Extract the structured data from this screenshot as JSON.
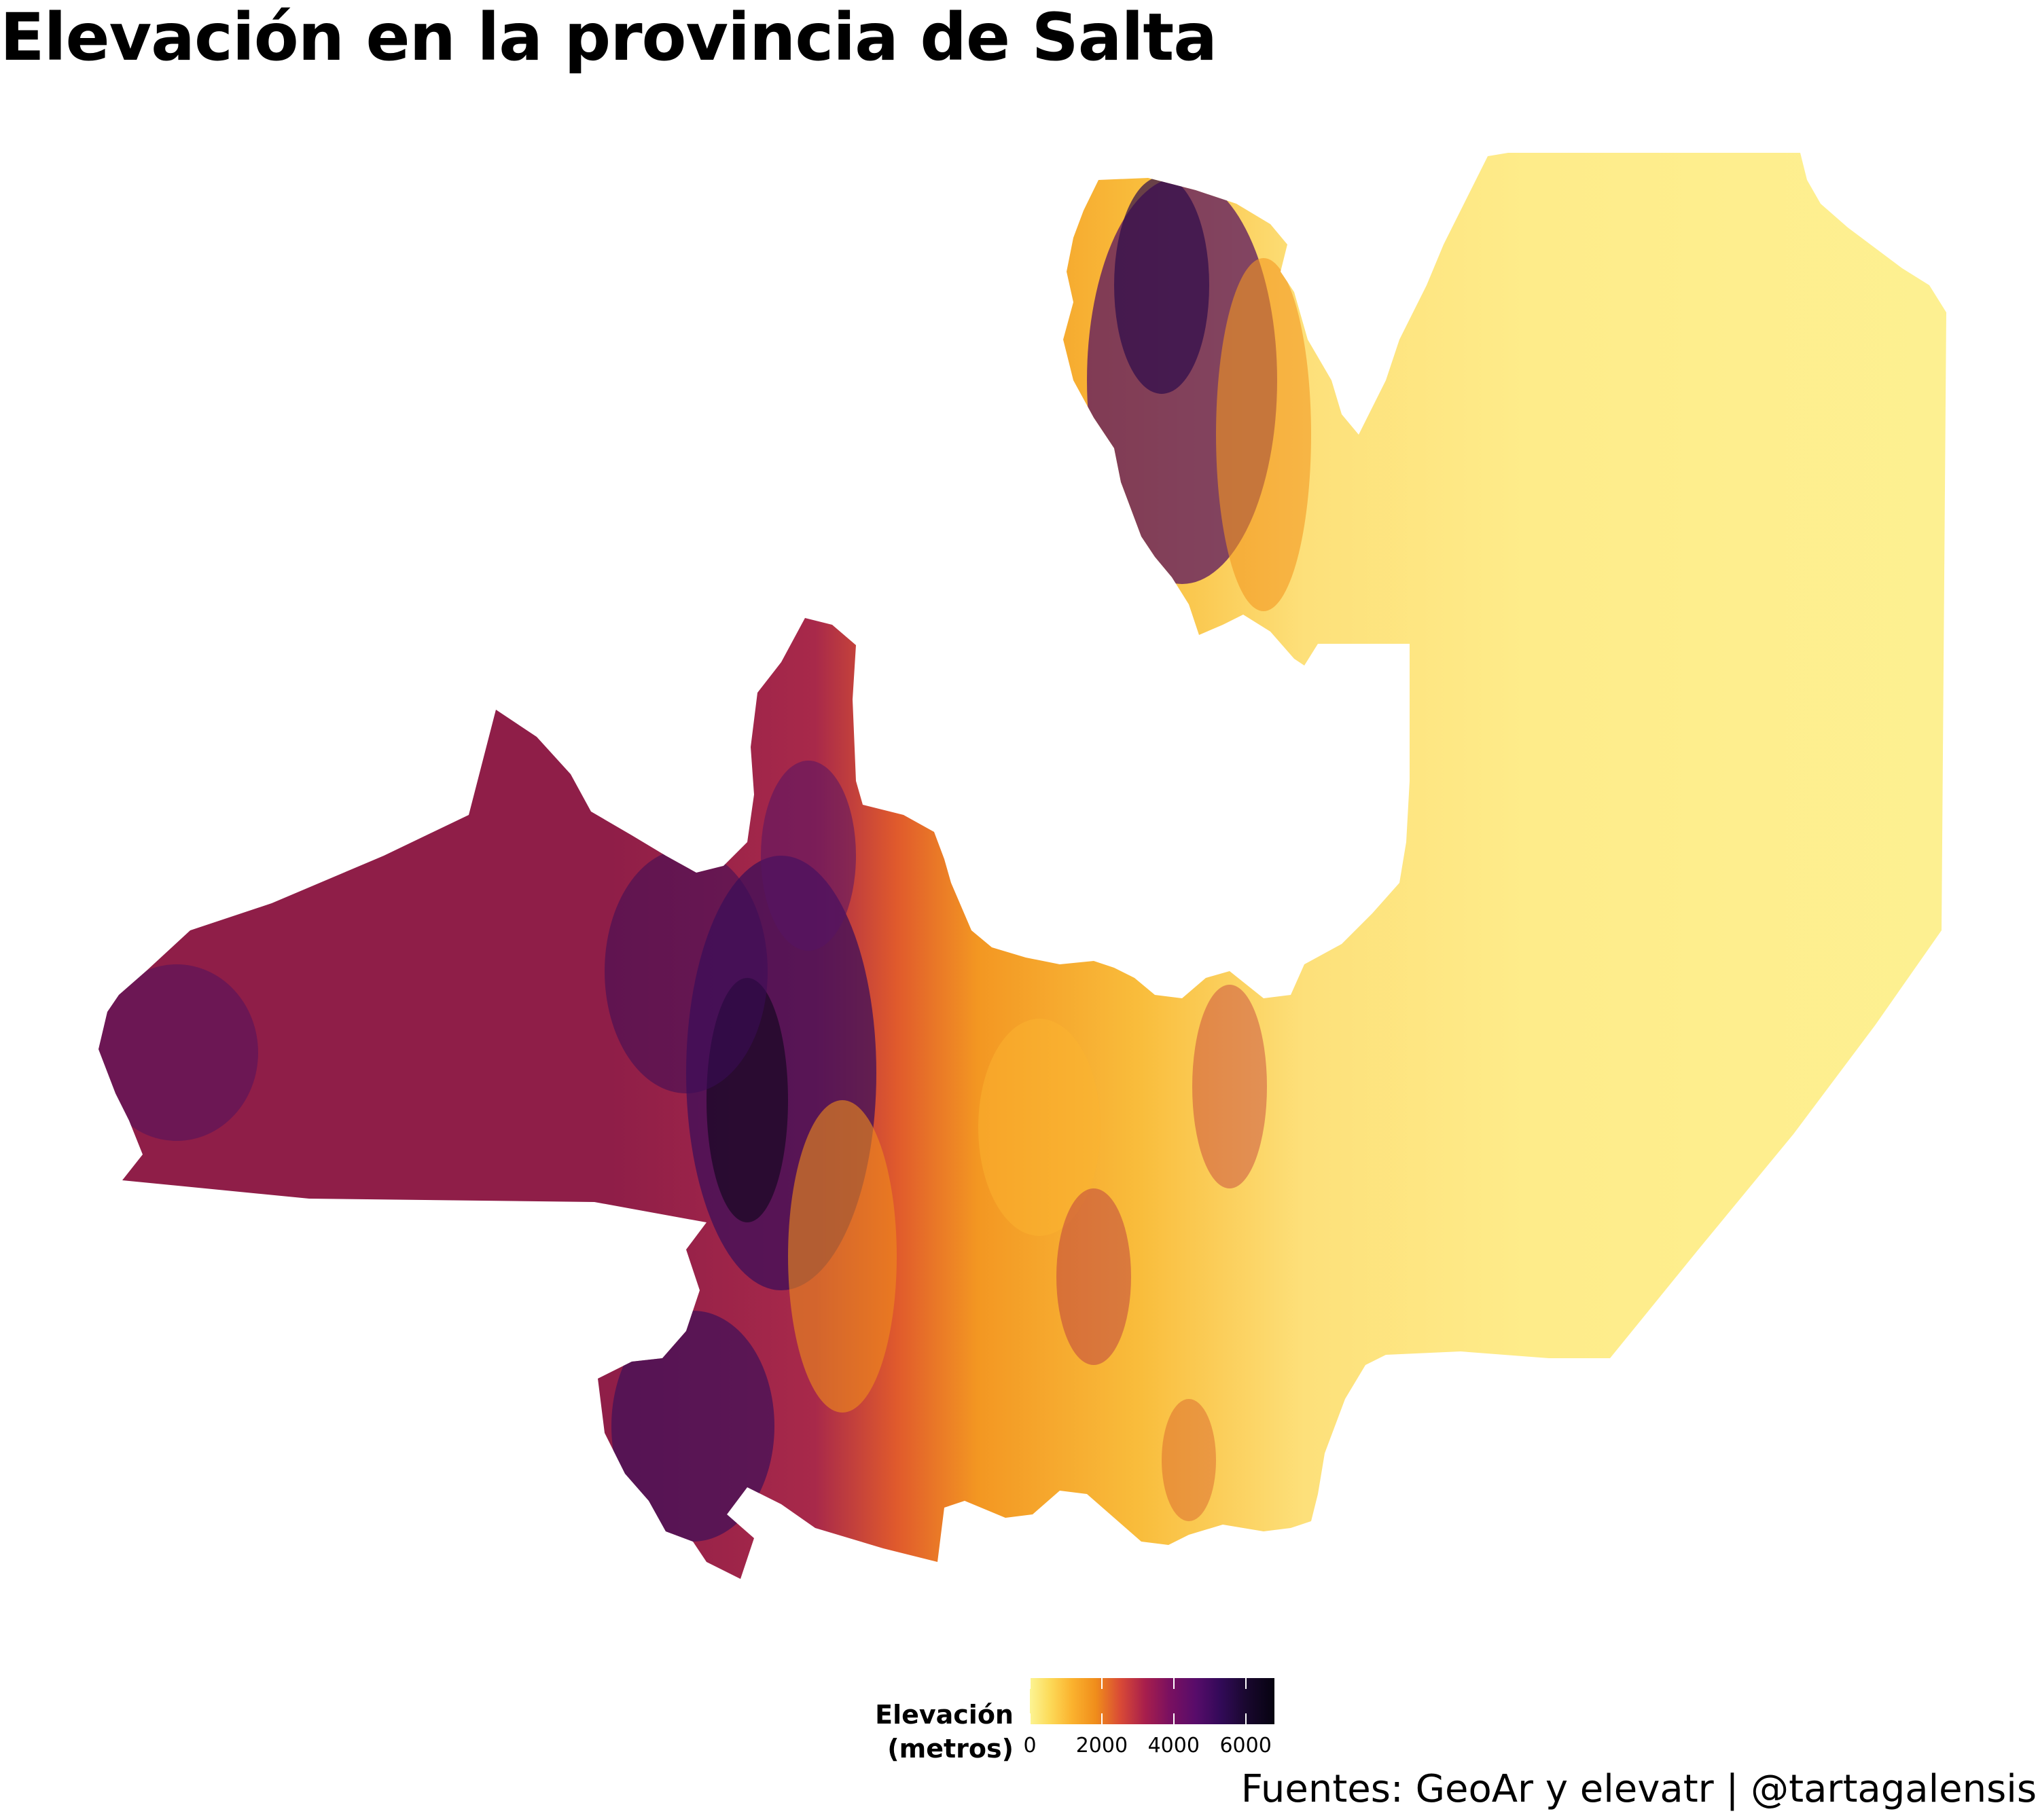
{
  "title": "Elevación en la provincia de Salta",
  "legend": {
    "title": "Elevación (metros)",
    "min": 0,
    "max": 6800,
    "ticks": [
      {
        "value": 0,
        "label": "0"
      },
      {
        "value": 2000,
        "label": "2000"
      },
      {
        "value": 4000,
        "label": "4000"
      },
      {
        "value": 6000,
        "label": "6000"
      }
    ],
    "colors": [
      "#fcf494",
      "#fcdb5a",
      "#fbb32f",
      "#f08d1b",
      "#d94a36",
      "#a81f4c",
      "#7a1060",
      "#570c6a",
      "#320a58",
      "#1a0830",
      "#060310"
    ]
  },
  "caption": "Fuentes: GeoAr y elevatr | @tartagalensis"
}
